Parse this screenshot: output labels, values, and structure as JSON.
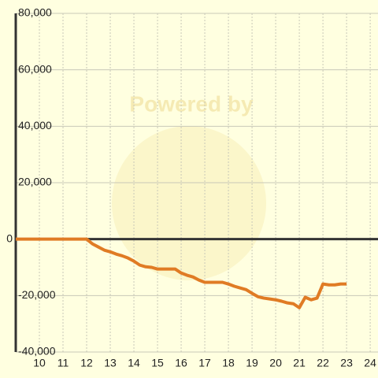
{
  "chart_data": {
    "type": "line",
    "watermark": "Powered by",
    "x": [
      9,
      10,
      11,
      12,
      12.25,
      12.5,
      12.75,
      13,
      13.25,
      13.5,
      13.75,
      14,
      14.25,
      14.5,
      14.75,
      15,
      15.25,
      15.5,
      15.75,
      16,
      16.25,
      16.5,
      16.75,
      17,
      17.25,
      17.5,
      17.75,
      18,
      18.25,
      18.5,
      18.75,
      19,
      19.25,
      19.5,
      19.75,
      20,
      20.25,
      20.5,
      20.75,
      21,
      21.25,
      21.5,
      21.75,
      22,
      22.25,
      22.5,
      22.75,
      23
    ],
    "series": [
      {
        "color": "#e07b24",
        "values": [
          0,
          0,
          0,
          0,
          -1700,
          -2800,
          -3900,
          -4500,
          -5300,
          -5900,
          -6700,
          -7800,
          -9200,
          -9800,
          -10000,
          -10600,
          -10600,
          -10600,
          -10600,
          -12000,
          -12800,
          -13400,
          -14500,
          -15300,
          -15300,
          -15300,
          -15300,
          -15900,
          -16700,
          -17300,
          -17900,
          -19200,
          -20400,
          -20900,
          -21200,
          -21500,
          -22000,
          -22600,
          -22900,
          -24300,
          -20600,
          -21500,
          -20900,
          -15900,
          -16200,
          -16200,
          -15900,
          -15900
        ]
      }
    ],
    "xlim": [
      9,
      24.33
    ],
    "xticks": [
      10,
      11,
      12,
      13,
      14,
      15,
      16,
      17,
      18,
      19,
      20,
      21,
      22,
      23,
      24
    ],
    "ylim": [
      -40000,
      80000
    ],
    "yticks": [
      {
        "value": -40000,
        "label": "-40,000"
      },
      {
        "value": -20000,
        "label": "-20,000"
      },
      0,
      {
        "value": 20000,
        "label": "20,000"
      },
      {
        "value": 40000,
        "label": "40,000"
      },
      {
        "value": 60000,
        "label": "60,000"
      },
      {
        "value": 80000,
        "label": "80,000"
      }
    ],
    "grid": true
  }
}
